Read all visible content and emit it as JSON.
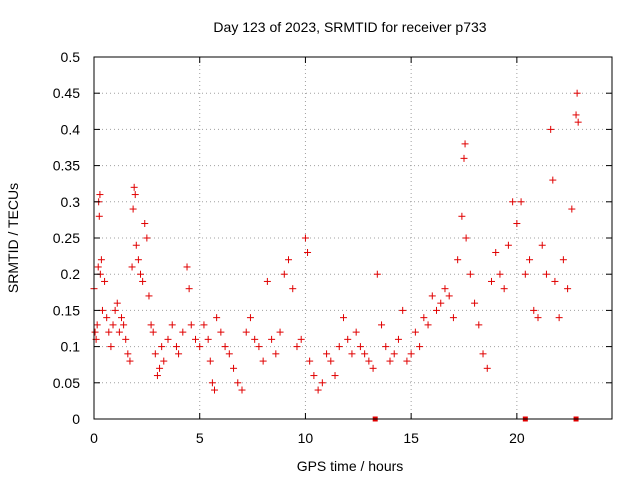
{
  "chart_data": {
    "type": "scatter",
    "title": "Day 123 of 2023, SRMTID for receiver p733",
    "xlabel": "GPS time / hours",
    "ylabel": "SRMTID / TECUs",
    "xlim": [
      0,
      24.5
    ],
    "ylim": [
      0,
      0.5
    ],
    "x_ticks": [
      0,
      5,
      10,
      15,
      20
    ],
    "x_tick_labels": [
      "0",
      "5",
      "10",
      "15",
      "20"
    ],
    "y_ticks": [
      0,
      0.05,
      0.1,
      0.15,
      0.2,
      0.25,
      0.3,
      0.35,
      0.4,
      0.45,
      0.5
    ],
    "y_tick_labels": [
      "0",
      "0.05",
      "0.1",
      "0.15",
      "0.2",
      "0.25",
      "0.3",
      "0.35",
      "0.4",
      "0.45",
      "0.5"
    ],
    "grid": true,
    "marker": "+",
    "marker_color": "#e00000",
    "series": [
      {
        "name": "SRMTID",
        "points": [
          [
            0.0,
            0.18
          ],
          [
            0.05,
            0.12
          ],
          [
            0.1,
            0.11
          ],
          [
            0.15,
            0.13
          ],
          [
            0.2,
            0.21
          ],
          [
            0.22,
            0.3
          ],
          [
            0.25,
            0.28
          ],
          [
            0.28,
            0.31
          ],
          [
            0.3,
            0.2
          ],
          [
            0.35,
            0.22
          ],
          [
            0.4,
            0.15
          ],
          [
            0.5,
            0.19
          ],
          [
            0.6,
            0.14
          ],
          [
            0.7,
            0.12
          ],
          [
            0.8,
            0.1
          ],
          [
            0.9,
            0.13
          ],
          [
            1.0,
            0.15
          ],
          [
            1.1,
            0.16
          ],
          [
            1.2,
            0.12
          ],
          [
            1.3,
            0.14
          ],
          [
            1.4,
            0.13
          ],
          [
            1.5,
            0.11
          ],
          [
            1.6,
            0.09
          ],
          [
            1.7,
            0.08
          ],
          [
            1.8,
            0.21
          ],
          [
            1.85,
            0.29
          ],
          [
            1.9,
            0.32
          ],
          [
            1.95,
            0.31
          ],
          [
            2.0,
            0.24
          ],
          [
            2.1,
            0.22
          ],
          [
            2.2,
            0.2
          ],
          [
            2.3,
            0.19
          ],
          [
            2.4,
            0.27
          ],
          [
            2.5,
            0.25
          ],
          [
            2.6,
            0.17
          ],
          [
            2.7,
            0.13
          ],
          [
            2.8,
            0.12
          ],
          [
            2.9,
            0.09
          ],
          [
            3.0,
            0.06
          ],
          [
            3.1,
            0.07
          ],
          [
            3.2,
            0.1
          ],
          [
            3.3,
            0.08
          ],
          [
            3.5,
            0.11
          ],
          [
            3.7,
            0.13
          ],
          [
            3.9,
            0.1
          ],
          [
            4.0,
            0.09
          ],
          [
            4.2,
            0.12
          ],
          [
            4.4,
            0.21
          ],
          [
            4.5,
            0.18
          ],
          [
            4.6,
            0.13
          ],
          [
            4.8,
            0.11
          ],
          [
            5.0,
            0.1
          ],
          [
            5.2,
            0.13
          ],
          [
            5.4,
            0.11
          ],
          [
            5.5,
            0.08
          ],
          [
            5.6,
            0.05
          ],
          [
            5.7,
            0.04
          ],
          [
            5.8,
            0.14
          ],
          [
            6.0,
            0.12
          ],
          [
            6.2,
            0.1
          ],
          [
            6.4,
            0.09
          ],
          [
            6.6,
            0.07
          ],
          [
            6.8,
            0.05
          ],
          [
            7.0,
            0.04
          ],
          [
            7.2,
            0.12
          ],
          [
            7.4,
            0.14
          ],
          [
            7.6,
            0.11
          ],
          [
            7.8,
            0.1
          ],
          [
            8.0,
            0.08
          ],
          [
            8.2,
            0.19
          ],
          [
            8.4,
            0.11
          ],
          [
            8.6,
            0.09
          ],
          [
            8.8,
            0.12
          ],
          [
            9.0,
            0.2
          ],
          [
            9.2,
            0.22
          ],
          [
            9.4,
            0.18
          ],
          [
            9.6,
            0.1
          ],
          [
            9.8,
            0.11
          ],
          [
            10.0,
            0.25
          ],
          [
            10.1,
            0.23
          ],
          [
            10.2,
            0.08
          ],
          [
            10.4,
            0.06
          ],
          [
            10.6,
            0.04
          ],
          [
            10.8,
            0.05
          ],
          [
            11.0,
            0.09
          ],
          [
            11.2,
            0.08
          ],
          [
            11.4,
            0.06
          ],
          [
            11.6,
            0.1
          ],
          [
            11.8,
            0.14
          ],
          [
            12.0,
            0.11
          ],
          [
            12.2,
            0.09
          ],
          [
            12.4,
            0.12
          ],
          [
            12.6,
            0.1
          ],
          [
            12.8,
            0.09
          ],
          [
            13.0,
            0.08
          ],
          [
            13.2,
            0.07
          ],
          [
            13.4,
            0.2
          ],
          [
            13.6,
            0.13
          ],
          [
            13.8,
            0.1
          ],
          [
            14.0,
            0.08
          ],
          [
            14.2,
            0.09
          ],
          [
            14.4,
            0.11
          ],
          [
            14.6,
            0.15
          ],
          [
            14.8,
            0.08
          ],
          [
            15.0,
            0.09
          ],
          [
            15.2,
            0.12
          ],
          [
            15.4,
            0.1
          ],
          [
            15.6,
            0.14
          ],
          [
            15.8,
            0.13
          ],
          [
            16.0,
            0.17
          ],
          [
            16.2,
            0.15
          ],
          [
            16.4,
            0.16
          ],
          [
            16.6,
            0.18
          ],
          [
            16.8,
            0.17
          ],
          [
            17.0,
            0.14
          ],
          [
            17.2,
            0.22
          ],
          [
            17.4,
            0.28
          ],
          [
            17.5,
            0.36
          ],
          [
            17.55,
            0.38
          ],
          [
            17.6,
            0.25
          ],
          [
            17.8,
            0.2
          ],
          [
            18.0,
            0.16
          ],
          [
            18.2,
            0.13
          ],
          [
            18.4,
            0.09
          ],
          [
            18.6,
            0.07
          ],
          [
            18.8,
            0.19
          ],
          [
            19.0,
            0.23
          ],
          [
            19.2,
            0.2
          ],
          [
            19.4,
            0.18
          ],
          [
            19.6,
            0.24
          ],
          [
            19.8,
            0.3
          ],
          [
            20.0,
            0.27
          ],
          [
            20.2,
            0.3
          ],
          [
            20.4,
            0.2
          ],
          [
            20.6,
            0.22
          ],
          [
            20.8,
            0.15
          ],
          [
            21.0,
            0.14
          ],
          [
            21.2,
            0.24
          ],
          [
            21.4,
            0.2
          ],
          [
            21.6,
            0.4
          ],
          [
            21.7,
            0.33
          ],
          [
            21.8,
            0.19
          ],
          [
            22.0,
            0.14
          ],
          [
            22.2,
            0.22
          ],
          [
            22.4,
            0.18
          ],
          [
            22.6,
            0.29
          ],
          [
            22.8,
            0.42
          ],
          [
            22.85,
            0.45
          ],
          [
            22.9,
            0.41
          ]
        ]
      }
    ],
    "zero_markers_x": [
      13.3,
      20.4,
      22.8
    ]
  }
}
